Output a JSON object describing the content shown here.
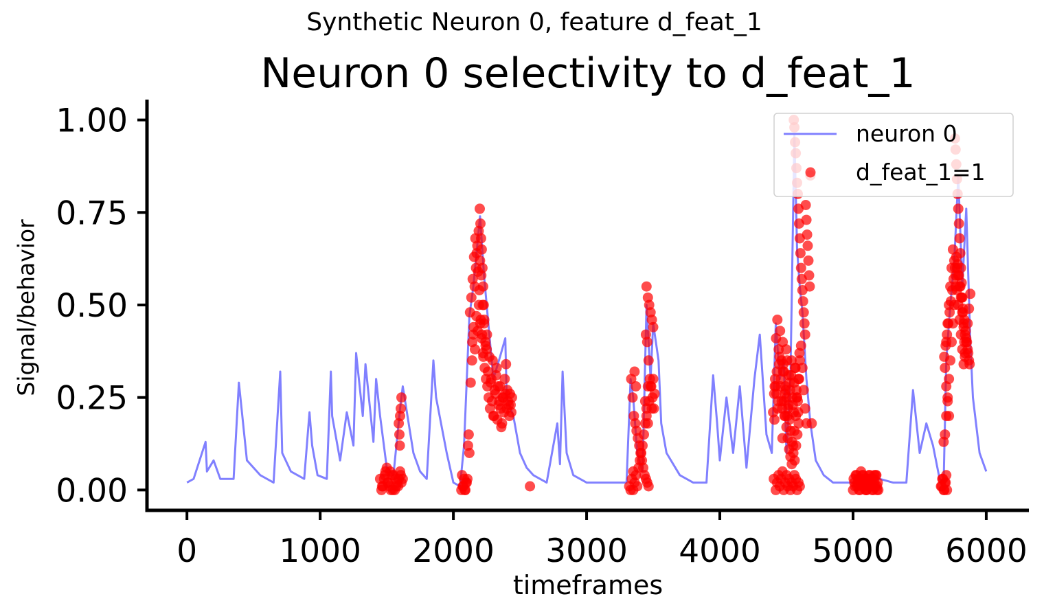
{
  "suptitle": "Synthetic Neuron 0, feature d_feat_1",
  "chart_data": {
    "type": "line",
    "title": "Neuron 0 selectivity to d_feat_1",
    "xlabel": "timeframes",
    "ylabel": "Signal/behavior",
    "xlim": [
      -300,
      6320
    ],
    "ylim": [
      -0.055,
      1.055
    ],
    "xticks": [
      0,
      1000,
      2000,
      3000,
      4000,
      5000,
      6000
    ],
    "xtick_labels": [
      "0",
      "1000",
      "2000",
      "3000",
      "4000",
      "5000",
      "6000"
    ],
    "yticks": [
      0.0,
      0.25,
      0.5,
      0.75,
      1.0
    ],
    "ytick_labels": [
      "0.00",
      "0.25",
      "0.50",
      "0.75",
      "1.00"
    ],
    "grid": false,
    "legend_position": "top-right",
    "series": [
      {
        "name": "neuron 0",
        "kind": "line",
        "color": "#8080ff",
        "x": [
          0,
          50,
          140,
          150,
          200,
          250,
          350,
          390,
          450,
          550,
          650,
          700,
          715,
          780,
          880,
          920,
          940,
          980,
          1050,
          1080,
          1090,
          1150,
          1200,
          1250,
          1270,
          1320,
          1340,
          1400,
          1420,
          1450,
          1500,
          1550,
          1600,
          1620,
          1700,
          1750,
          1800,
          1850,
          1870,
          1950,
          2000,
          2050,
          2080,
          2120,
          2150,
          2200,
          2230,
          2280,
          2300,
          2350,
          2390,
          2400,
          2450,
          2500,
          2550,
          2600,
          2700,
          2780,
          2800,
          2820,
          2850,
          2900,
          3000,
          3100,
          3200,
          3300,
          3330,
          3350,
          3380,
          3420,
          3450,
          3480,
          3500,
          3540,
          3560,
          3600,
          3700,
          3800,
          3900,
          3950,
          3980,
          4000,
          4050,
          4100,
          4150,
          4200,
          4260,
          4300,
          4350,
          4390,
          4420,
          4450,
          4480,
          4500,
          4530,
          4560,
          4580,
          4600,
          4620,
          4650,
          4680,
          4720,
          4780,
          4850,
          4900,
          5000,
          5100,
          5200,
          5300,
          5400,
          5450,
          5500,
          5550,
          5600,
          5650,
          5680,
          5700,
          5730,
          5760,
          5790,
          5820,
          5850,
          5880,
          5900,
          5950,
          6000
        ],
        "y": [
          0.02,
          0.03,
          0.13,
          0.05,
          0.08,
          0.03,
          0.03,
          0.29,
          0.08,
          0.04,
          0.02,
          0.32,
          0.1,
          0.05,
          0.03,
          0.21,
          0.12,
          0.04,
          0.03,
          0.32,
          0.2,
          0.08,
          0.21,
          0.12,
          0.37,
          0.2,
          0.34,
          0.13,
          0.3,
          0.2,
          0.06,
          0.04,
          0.22,
          0.28,
          0.1,
          0.05,
          0.03,
          0.35,
          0.25,
          0.1,
          0.02,
          0.01,
          0.12,
          0.47,
          0.55,
          0.74,
          0.58,
          0.38,
          0.3,
          0.36,
          0.41,
          0.25,
          0.2,
          0.1,
          0.06,
          0.04,
          0.02,
          0.18,
          0.07,
          0.32,
          0.1,
          0.04,
          0.02,
          0.02,
          0.02,
          0.02,
          0.3,
          0.25,
          0.1,
          0.05,
          0.5,
          0.3,
          0.45,
          0.35,
          0.18,
          0.1,
          0.04,
          0.02,
          0.02,
          0.31,
          0.18,
          0.08,
          0.25,
          0.1,
          0.28,
          0.06,
          0.3,
          0.42,
          0.15,
          0.1,
          0.45,
          0.3,
          0.35,
          0.1,
          0.3,
          0.96,
          0.65,
          0.55,
          0.48,
          0.3,
          0.18,
          0.08,
          0.04,
          0.02,
          0.02,
          0.02,
          0.02,
          0.03,
          0.02,
          0.02,
          0.27,
          0.1,
          0.18,
          0.12,
          0.03,
          0.02,
          0.35,
          0.5,
          0.62,
          0.85,
          0.55,
          0.76,
          0.4,
          0.25,
          0.1,
          0.05
        ]
      },
      {
        "name": "d_feat_1=1",
        "kind": "scatter",
        "color": "#ff0000",
        "x": [
          1450,
          1470,
          1490,
          1510,
          1530,
          1550,
          1570,
          1590,
          1610,
          1460,
          1480,
          1500,
          1520,
          1540,
          1560,
          1580,
          1600,
          1620,
          1465,
          1485,
          1505,
          1525,
          1545,
          1565,
          1585,
          1605,
          1595,
          1600,
          1605,
          1610,
          1590,
          1598,
          2060,
          2070,
          2080,
          2090,
          2100,
          2065,
          2075,
          2085,
          2095,
          2105,
          2110,
          2115,
          2120,
          2130,
          2140,
          2150,
          2160,
          2170,
          2180,
          2190,
          2200,
          2210,
          2220,
          2230,
          2240,
          2250,
          2125,
          2135,
          2145,
          2155,
          2165,
          2175,
          2185,
          2195,
          2205,
          2215,
          2225,
          2235,
          2245,
          2255,
          2265,
          2275,
          2285,
          2295,
          2305,
          2315,
          2325,
          2335,
          2345,
          2355,
          2365,
          2375,
          2385,
          2395,
          2405,
          2415,
          2425,
          2435,
          2260,
          2270,
          2280,
          2290,
          2300,
          2310,
          2320,
          2330,
          2340,
          2350,
          2360,
          2370,
          2380,
          2390,
          2400,
          2410,
          2420,
          2430,
          2440,
          2142,
          2152,
          2162,
          2172,
          2182,
          2192,
          2202,
          2212,
          2222,
          2232,
          2242,
          2252,
          2198,
          2203,
          2208,
          2213,
          2218,
          2223,
          2228,
          2575,
          3320,
          3330,
          3340,
          3350,
          3360,
          3370,
          3380,
          3390,
          3400,
          3410,
          3420,
          3430,
          3440,
          3450,
          3460,
          3335,
          3345,
          3355,
          3365,
          3375,
          3385,
          3395,
          3405,
          3415,
          3425,
          3435,
          3445,
          3455,
          3465,
          3350,
          3360,
          3370,
          3440,
          3450,
          3460,
          3470,
          3480,
          3490,
          3500,
          3445,
          3455,
          3465,
          3475,
          3485,
          3495,
          3505,
          3450,
          3460,
          3470,
          3480,
          3490,
          3500,
          3510,
          4400,
          4410,
          4420,
          4430,
          4440,
          4450,
          4460,
          4470,
          4480,
          4490,
          4500,
          4510,
          4520,
          4530,
          4540,
          4550,
          4560,
          4570,
          4580,
          4590,
          4600,
          4405,
          4415,
          4425,
          4435,
          4445,
          4455,
          4465,
          4475,
          4485,
          4495,
          4505,
          4515,
          4525,
          4535,
          4545,
          4555,
          4565,
          4575,
          4585,
          4595,
          4408,
          4418,
          4428,
          4438,
          4448,
          4458,
          4468,
          4478,
          4488,
          4498,
          4508,
          4518,
          4528,
          4538,
          4548,
          4558,
          4568,
          4578,
          4588,
          4598,
          4412,
          4422,
          4432,
          4442,
          4452,
          4462,
          4472,
          4482,
          4492,
          4502,
          4512,
          4522,
          4532,
          4542,
          4552,
          4562,
          4572,
          4582,
          4592,
          4470,
          4480,
          4490,
          4500,
          4510,
          4520,
          4530,
          4540,
          4550,
          4560,
          4570,
          4580,
          4590,
          4600,
          4610,
          4620,
          4630,
          4640,
          4650,
          4690,
          4555,
          4560,
          4565,
          4570,
          4575,
          4580,
          4585,
          4590,
          4595,
          4600,
          4605,
          4610,
          4615,
          4620,
          4625,
          4630,
          4635,
          4640,
          4645,
          4650,
          4655,
          4660,
          4665,
          4670,
          4675,
          4680,
          5000,
          5010,
          5020,
          5030,
          5040,
          5050,
          5060,
          5070,
          5080,
          5090,
          5100,
          5110,
          5120,
          5130,
          5140,
          5150,
          5160,
          5170,
          5180,
          5190,
          5005,
          5015,
          5025,
          5035,
          5045,
          5055,
          5065,
          5075,
          5085,
          5095,
          5105,
          5115,
          5125,
          5135,
          5145,
          5155,
          5165,
          5175,
          5185,
          5060,
          5080,
          5100,
          5120,
          5140,
          5160,
          5180,
          5660,
          5670,
          5680,
          5690,
          5700,
          5665,
          5675,
          5685,
          5695,
          5705,
          5680,
          5690,
          5700,
          5710,
          5720,
          5730,
          5740,
          5750,
          5760,
          5770,
          5780,
          5790,
          5800,
          5810,
          5820,
          5830,
          5840,
          5850,
          5860,
          5870,
          5685,
          5695,
          5705,
          5715,
          5725,
          5735,
          5745,
          5755,
          5765,
          5775,
          5785,
          5795,
          5805,
          5815,
          5825,
          5835,
          5845,
          5855,
          5865,
          5875,
          5700,
          5710,
          5720,
          5730,
          5740,
          5750,
          5760,
          5770,
          5780,
          5790,
          5800,
          5810,
          5820,
          5830,
          5840,
          5850,
          5860,
          5870,
          5880,
          5690,
          5700,
          5710,
          5720,
          5765,
          5770,
          5775,
          5780,
          5785,
          5790,
          5795,
          5800,
          5805,
          5810,
          5815,
          5820,
          5825,
          5830,
          5835,
          5840
        ],
        "y": [
          0.03,
          0.01,
          0.05,
          0.02,
          0.0,
          0.04,
          0.01,
          0.03,
          0.02,
          0.0,
          0.03,
          0.06,
          0.01,
          0.04,
          0.0,
          0.02,
          0.05,
          0.03,
          0.01,
          0.04,
          0.02,
          0.05,
          0.0,
          0.03,
          0.01,
          0.04,
          0.15,
          0.2,
          0.22,
          0.25,
          0.18,
          0.12,
          0.0,
          0.01,
          0.03,
          0.0,
          0.02,
          0.04,
          0.01,
          0.0,
          0.02,
          0.03,
          0.12,
          0.15,
          0.1,
          0.29,
          0.35,
          0.42,
          0.55,
          0.6,
          0.66,
          0.7,
          0.62,
          0.58,
          0.5,
          0.45,
          0.4,
          0.38,
          0.48,
          0.52,
          0.57,
          0.63,
          0.68,
          0.64,
          0.59,
          0.54,
          0.46,
          0.42,
          0.36,
          0.33,
          0.3,
          0.28,
          0.25,
          0.22,
          0.3,
          0.35,
          0.2,
          0.26,
          0.33,
          0.28,
          0.24,
          0.22,
          0.18,
          0.25,
          0.3,
          0.34,
          0.27,
          0.23,
          0.26,
          0.21,
          0.32,
          0.36,
          0.29,
          0.24,
          0.2,
          0.27,
          0.31,
          0.19,
          0.23,
          0.28,
          0.17,
          0.25,
          0.21,
          0.26,
          0.22,
          0.24,
          0.2,
          0.23,
          0.25,
          0.4,
          0.44,
          0.38,
          0.47,
          0.43,
          0.5,
          0.45,
          0.41,
          0.37,
          0.46,
          0.39,
          0.42,
          0.76,
          0.72,
          0.68,
          0.65,
          0.6,
          0.55,
          0.5,
          0.01,
          0.01,
          0.0,
          0.03,
          0.05,
          0.02,
          0.04,
          0.01,
          0.06,
          0.08,
          0.1,
          0.12,
          0.15,
          0.18,
          0.22,
          0.28,
          0.3,
          0.25,
          0.2,
          0.18,
          0.16,
          0.14,
          0.12,
          0.1,
          0.08,
          0.06,
          0.04,
          0.03,
          0.02,
          0.01,
          0.0,
          0.32,
          0.28,
          0.24,
          0.55,
          0.52,
          0.5,
          0.48,
          0.46,
          0.44,
          0.42,
          0.4,
          0.35,
          0.3,
          0.28,
          0.25,
          0.22,
          0.2,
          0.18,
          0.24,
          0.28,
          0.22,
          0.3,
          0.26,
          0.21,
          0.19,
          0.0,
          0.02,
          0.04,
          0.01,
          0.03,
          0.05,
          0.0,
          0.02,
          0.04,
          0.01,
          0.03,
          0.0,
          0.02,
          0.01,
          0.04,
          0.03,
          0.0,
          0.02,
          0.01,
          0.03,
          0.3,
          0.26,
          0.22,
          0.34,
          0.28,
          0.24,
          0.32,
          0.2,
          0.27,
          0.35,
          0.23,
          0.29,
          0.31,
          0.25,
          0.21,
          0.33,
          0.27,
          0.24,
          0.3,
          0.26,
          0.28,
          0.32,
          0.24,
          0.36,
          0.3,
          0.22,
          0.34,
          0.26,
          0.38,
          0.2,
          0.31,
          0.27,
          0.35,
          0.23,
          0.29,
          0.33,
          0.25,
          0.21,
          0.37,
          0.28,
          0.41,
          0.46,
          0.38,
          0.43,
          0.35,
          0.4,
          0.32,
          0.28,
          0.25,
          0.22,
          0.19,
          0.16,
          0.13,
          0.1,
          0.08,
          0.12,
          0.15,
          0.18,
          0.14,
          0.24,
          0.2,
          0.17,
          0.14,
          0.11,
          0.09,
          0.07,
          0.12,
          0.16,
          0.2,
          0.25,
          0.3,
          0.35,
          0.39,
          0.33,
          0.27,
          0.22,
          0.18,
          0.18,
          1.0,
          0.98,
          0.94,
          0.91,
          0.87,
          0.83,
          0.8,
          0.76,
          0.72,
          0.68,
          0.64,
          0.6,
          0.57,
          0.54,
          0.51,
          0.48,
          0.45,
          0.42,
          0.77,
          0.73,
          0.69,
          0.66,
          0.62,
          0.58,
          0.55,
          0.85,
          0.0,
          0.02,
          0.04,
          0.01,
          0.03,
          0.0,
          0.02,
          0.04,
          0.01,
          0.03,
          0.0,
          0.02,
          0.04,
          0.01,
          0.03,
          0.0,
          0.02,
          0.04,
          0.01,
          0.0,
          0.03,
          0.01,
          0.04,
          0.02,
          0.0,
          0.03,
          0.01,
          0.04,
          0.02,
          0.0,
          0.03,
          0.01,
          0.04,
          0.02,
          0.0,
          0.03,
          0.01,
          0.04,
          0.02,
          0.05,
          0.02,
          0.0,
          0.03,
          0.01,
          0.04,
          0.0,
          0.01,
          0.03,
          0.0,
          0.02,
          0.04,
          0.01,
          0.03,
          0.0,
          0.02,
          0.0,
          0.13,
          0.15,
          0.2,
          0.25,
          0.3,
          0.35,
          0.4,
          0.45,
          0.5,
          0.55,
          0.6,
          0.58,
          0.55,
          0.52,
          0.48,
          0.45,
          0.42,
          0.4,
          0.38,
          0.35,
          0.36,
          0.39,
          0.42,
          0.45,
          0.48,
          0.51,
          0.54,
          0.57,
          0.6,
          0.63,
          0.61,
          0.58,
          0.55,
          0.52,
          0.49,
          0.46,
          0.43,
          0.4,
          0.37,
          0.34,
          0.4,
          0.45,
          0.5,
          0.55,
          0.6,
          0.65,
          0.62,
          0.58,
          0.54,
          0.5,
          0.46,
          0.42,
          0.38,
          0.34,
          0.37,
          0.41,
          0.45,
          0.49,
          0.53,
          0.33,
          0.28,
          0.24,
          0.2,
          0.95,
          0.92,
          0.88,
          0.84,
          0.8,
          0.76,
          0.72,
          0.68,
          0.64,
          0.6,
          0.56,
          0.52,
          0.48,
          0.44,
          0.4,
          0.36
        ]
      }
    ]
  }
}
